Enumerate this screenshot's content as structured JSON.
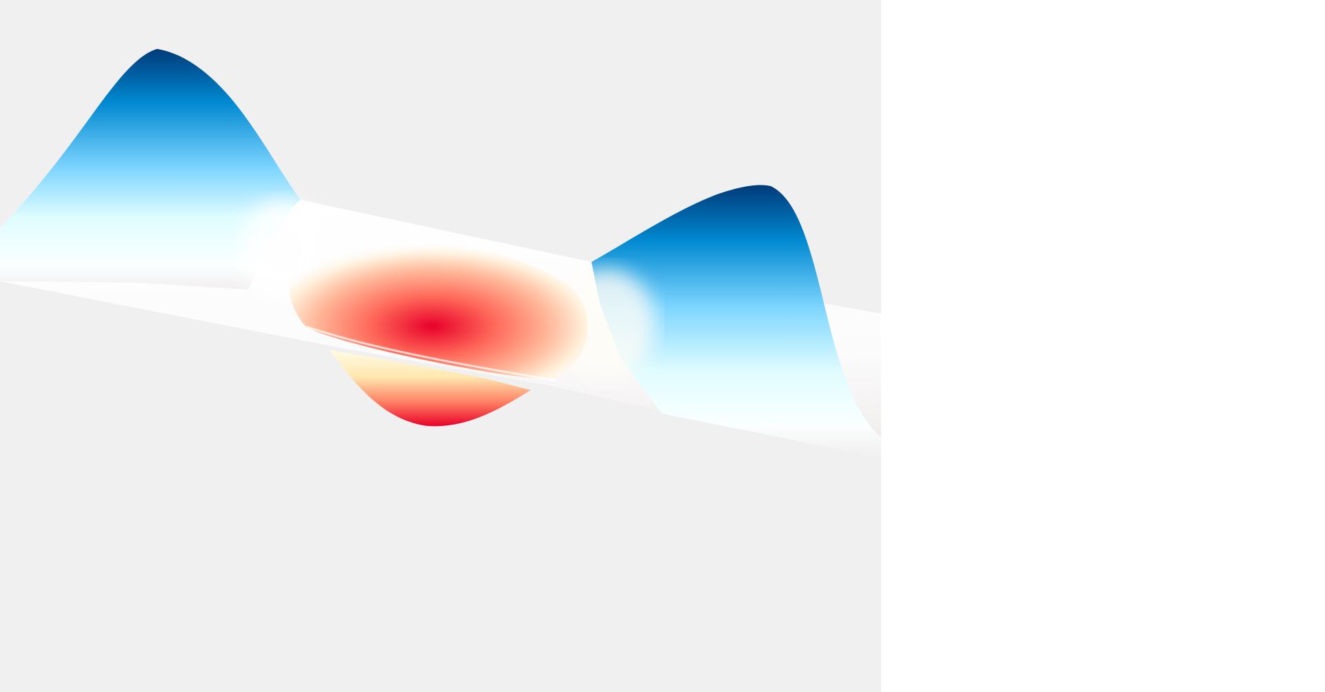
{
  "scene": {
    "background_color": "#f0f0f0",
    "panel_color": "#ffffff",
    "colormap": {
      "high": "#003a78",
      "mid_high": "#0088d0",
      "light": "#7fd6ff",
      "pale": "#dffcff",
      "neutral": "#ffffff",
      "warm": "#fff2cc",
      "mid_low": "#ff8a6a",
      "low": "#e8002a"
    }
  }
}
